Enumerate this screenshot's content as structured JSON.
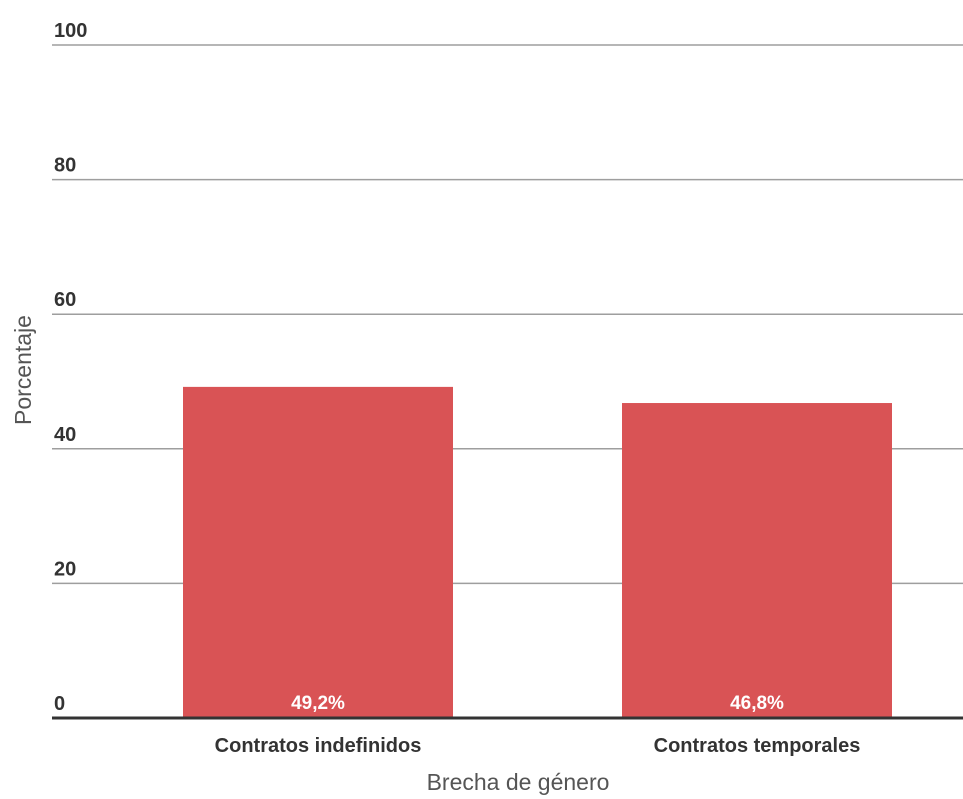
{
  "chart_data": {
    "type": "bar",
    "categories": [
      "Contratos indefinidos",
      "Contratos temporales"
    ],
    "values": [
      49.2,
      46.8
    ],
    "data_labels": [
      "49,2%",
      "46,8%"
    ],
    "xlabel": "Brecha de género",
    "ylabel": "Porcentaje",
    "ylim": [
      0,
      100
    ],
    "yticks": [
      0,
      20,
      40,
      60,
      80,
      100
    ],
    "grid": true,
    "legend": "none",
    "bar_color": "#d95355"
  }
}
